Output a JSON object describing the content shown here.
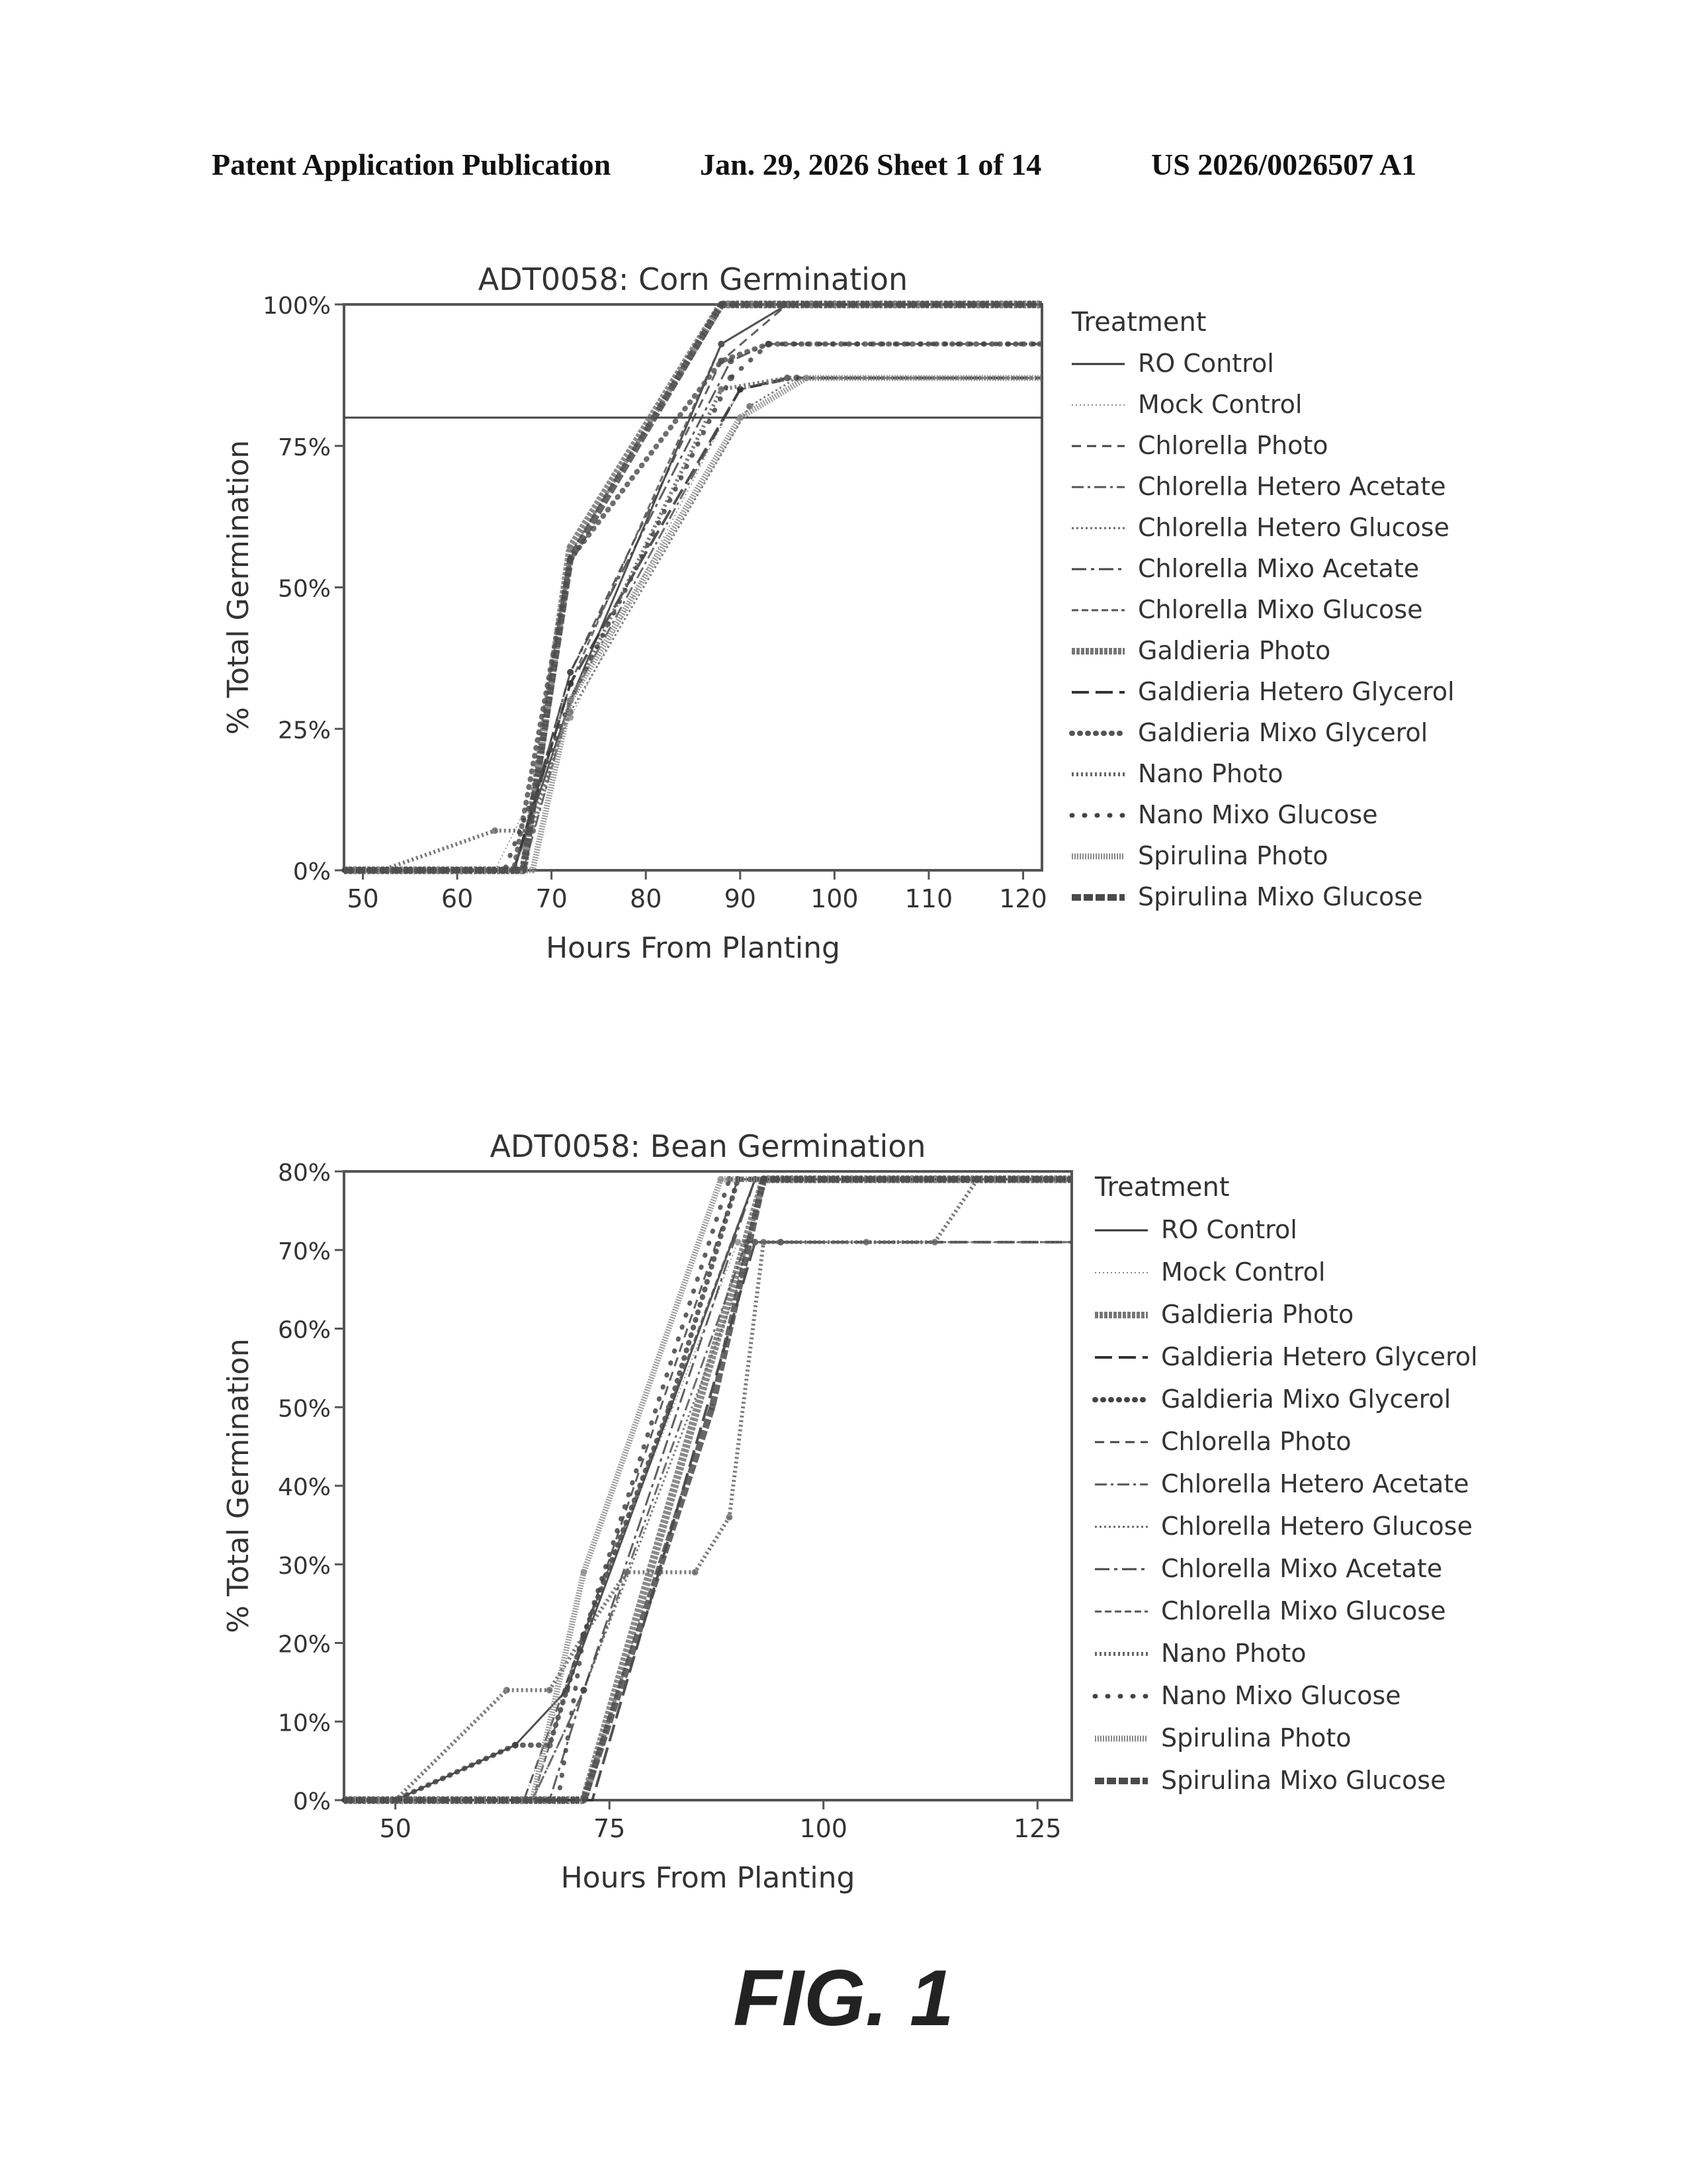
{
  "header": {
    "publication": "Patent Application Publication",
    "date_sheet": "Jan. 29, 2026  Sheet 1 of 14",
    "number": "US 2026/0026507 A1"
  },
  "figure_label": "FIG. 1",
  "chart_data": [
    {
      "type": "line",
      "title": "ADT0058: Corn Germination",
      "xlabel": "Hours From Planting",
      "ylabel": "% Total Germination",
      "xlim": [
        48,
        122
      ],
      "ylim": [
        0,
        1.0
      ],
      "xticks": [
        50,
        60,
        70,
        80,
        90,
        100,
        110,
        120
      ],
      "xtick_labels": [
        "50",
        "60",
        "70",
        "80",
        "90",
        "100",
        "110",
        "120"
      ],
      "yticks": [
        0,
        0.25,
        0.5,
        0.75,
        1.0
      ],
      "ytick_labels": [
        "0%",
        "25%",
        "50%",
        "75%",
        "100%"
      ],
      "reference_line_y": 0.8,
      "legend_title": "Treatment",
      "legend_position": "right",
      "series": [
        {
          "name": "RO Control",
          "style": "solid",
          "color": "#333333",
          "x": [
            48,
            52,
            66,
            72,
            88,
            95,
            122
          ],
          "y": [
            0,
            0,
            0,
            0.3,
            0.93,
            1.0,
            1.0
          ]
        },
        {
          "name": "Mock Control",
          "style": "dotted-thin",
          "color": "#888888",
          "x": [
            48,
            52,
            64,
            72,
            90,
            96,
            122
          ],
          "y": [
            0,
            0,
            0,
            0.27,
            0.85,
            0.87,
            0.87
          ]
        },
        {
          "name": "Chlorella Photo",
          "style": "dashed",
          "color": "#444444",
          "x": [
            48,
            52,
            66,
            72,
            88,
            95,
            122
          ],
          "y": [
            0,
            0,
            0,
            0.35,
            0.9,
            1.0,
            1.0
          ]
        },
        {
          "name": "Chlorella Hetero Acetate",
          "style": "dashdot",
          "color": "#555555",
          "x": [
            48,
            52,
            67,
            72,
            90,
            96,
            122
          ],
          "y": [
            0,
            0,
            0,
            0.3,
            0.85,
            0.87,
            0.87
          ]
        },
        {
          "name": "Chlorella Hetero Glucose",
          "style": "dotted",
          "color": "#666666",
          "x": [
            48,
            52,
            66,
            72,
            91,
            96,
            122
          ],
          "y": [
            0,
            0,
            0,
            0.28,
            0.82,
            0.87,
            0.87
          ]
        },
        {
          "name": "Chlorella Mixo Acetate",
          "style": "longdash-dot",
          "color": "#444444",
          "x": [
            48,
            52,
            66,
            72,
            89,
            93,
            122
          ],
          "y": [
            0,
            0,
            0,
            0.35,
            0.9,
            0.93,
            0.93
          ]
        },
        {
          "name": "Chlorella Mixo Glucose",
          "style": "dashed-fine",
          "color": "#555555",
          "x": [
            48,
            52,
            66,
            72,
            88,
            95,
            122
          ],
          "y": [
            0,
            0,
            0,
            0.33,
            0.93,
            1.0,
            1.0
          ]
        },
        {
          "name": "Galdieria Photo",
          "style": "thick-textured",
          "color": "#777777",
          "x": [
            48,
            52,
            67,
            72,
            88,
            122
          ],
          "y": [
            0,
            0,
            0,
            0.57,
            1.0,
            1.0
          ]
        },
        {
          "name": "Galdieria Hetero Glycerol",
          "style": "longdash",
          "color": "#333333",
          "x": [
            48,
            52,
            66,
            72,
            90,
            95,
            122
          ],
          "y": [
            0,
            0,
            0,
            0.33,
            0.85,
            0.87,
            0.87
          ]
        },
        {
          "name": "Galdieria Mixo Glycerol",
          "style": "dots-heavy",
          "color": "#555555",
          "x": [
            48,
            52,
            66,
            72,
            88,
            93,
            122
          ],
          "y": [
            0,
            0,
            0,
            0.55,
            0.9,
            0.93,
            0.93
          ]
        },
        {
          "name": "Nano Photo",
          "style": "dots-dense",
          "color": "#666666",
          "x": [
            48,
            52,
            64,
            68,
            72,
            88,
            95,
            122
          ],
          "y": [
            0,
            0,
            0.07,
            0.07,
            0.3,
            0.85,
            0.87,
            0.87
          ]
        },
        {
          "name": "Nano Mixo Glucose",
          "style": "dots-sparse",
          "color": "#444444",
          "x": [
            48,
            52,
            65,
            72,
            89,
            93,
            122
          ],
          "y": [
            0,
            0,
            0,
            0.3,
            0.87,
            0.93,
            0.93
          ]
        },
        {
          "name": "Spirulina Photo",
          "style": "hatched",
          "color": "#888888",
          "x": [
            48,
            52,
            68,
            72,
            90,
            97,
            122
          ],
          "y": [
            0,
            0,
            0,
            0.3,
            0.8,
            0.87,
            0.87
          ]
        },
        {
          "name": "Spirulina Mixo Glucose",
          "style": "thick-dark",
          "color": "#4a4a4a",
          "x": [
            48,
            52,
            67,
            72,
            88,
            122
          ],
          "y": [
            0,
            0,
            0,
            0.55,
            1.0,
            1.0
          ]
        }
      ]
    },
    {
      "type": "line",
      "title": "ADT0058: Bean Germination",
      "xlabel": "Hours From Planting",
      "ylabel": "% Total Germination",
      "xlim": [
        44,
        129
      ],
      "ylim": [
        0,
        0.8
      ],
      "xticks": [
        50,
        75,
        100,
        125
      ],
      "xtick_labels": [
        "50",
        "75",
        "100",
        "125"
      ],
      "yticks": [
        0,
        0.1,
        0.2,
        0.3,
        0.4,
        0.5,
        0.6,
        0.7,
        0.8
      ],
      "ytick_labels": [
        "0%",
        "10%",
        "20%",
        "30%",
        "40%",
        "50%",
        "60%",
        "70%",
        "80%"
      ],
      "legend_title": "Treatment",
      "legend_position": "right",
      "series": [
        {
          "name": "RO Control",
          "style": "solid",
          "color": "#333333",
          "x": [
            44,
            50,
            64,
            70,
            92,
            100,
            129
          ],
          "y": [
            0,
            0,
            0.07,
            0.14,
            0.79,
            0.79,
            0.79
          ]
        },
        {
          "name": "Mock Control",
          "style": "dotted-thin",
          "color": "#888888",
          "x": [
            44,
            50,
            65,
            72,
            90,
            95,
            129
          ],
          "y": [
            0,
            0,
            0,
            0.21,
            0.71,
            0.71,
            0.71
          ]
        },
        {
          "name": "Galdieria Photo",
          "style": "thick-textured",
          "color": "#777777",
          "x": [
            44,
            50,
            70,
            72,
            93,
            129
          ],
          "y": [
            0,
            0,
            0,
            0,
            0.79,
            0.79
          ]
        },
        {
          "name": "Galdieria Hetero Glycerol",
          "style": "longdash",
          "color": "#333333",
          "x": [
            44,
            50,
            70,
            73,
            92,
            129
          ],
          "y": [
            0,
            0,
            0,
            0,
            0.71,
            0.71
          ]
        },
        {
          "name": "Galdieria Mixo Glycerol",
          "style": "dots-heavy",
          "color": "#444444",
          "x": [
            44,
            50,
            64,
            68,
            72,
            82,
            90,
            129
          ],
          "y": [
            0,
            0,
            0.07,
            0.07,
            0.21,
            0.5,
            0.79,
            0.79
          ]
        },
        {
          "name": "Chlorella Photo",
          "style": "dashed",
          "color": "#444444",
          "x": [
            44,
            50,
            65,
            72,
            90,
            129
          ],
          "y": [
            0,
            0,
            0,
            0.21,
            0.79,
            0.79
          ]
        },
        {
          "name": "Chlorella Hetero Acetate",
          "style": "dashdot",
          "color": "#555555",
          "x": [
            44,
            50,
            66,
            72,
            91,
            95,
            129
          ],
          "y": [
            0,
            0,
            0,
            0.14,
            0.71,
            0.71,
            0.71
          ]
        },
        {
          "name": "Chlorella Hetero Glucose",
          "style": "dotted",
          "color": "#666666",
          "x": [
            44,
            50,
            66,
            72,
            92,
            129
          ],
          "y": [
            0,
            0,
            0,
            0.14,
            0.71,
            0.71
          ]
        },
        {
          "name": "Chlorella Mixo Acetate",
          "style": "longdash-dot",
          "color": "#444444",
          "x": [
            44,
            50,
            68,
            72,
            92,
            129
          ],
          "y": [
            0,
            0,
            0,
            0.14,
            0.79,
            0.79
          ]
        },
        {
          "name": "Chlorella Mixo Glucose",
          "style": "dashed-fine",
          "color": "#555555",
          "x": [
            44,
            50,
            66,
            72,
            92,
            129
          ],
          "y": [
            0,
            0,
            0,
            0.21,
            0.79,
            0.79
          ]
        },
        {
          "name": "Nano Photo",
          "style": "dots-dense",
          "color": "#666666",
          "x": [
            44,
            50,
            63,
            68,
            72,
            77,
            85,
            89,
            93,
            105,
            113,
            118,
            129
          ],
          "y": [
            0,
            0,
            0.14,
            0.14,
            0.21,
            0.29,
            0.29,
            0.36,
            0.71,
            0.71,
            0.71,
            0.79,
            0.79
          ]
        },
        {
          "name": "Nano Mixo Glucose",
          "style": "dots-sparse",
          "color": "#444444",
          "x": [
            44,
            50,
            69,
            72,
            89,
            129
          ],
          "y": [
            0,
            0,
            0,
            0.21,
            0.79,
            0.79
          ]
        },
        {
          "name": "Spirulina Photo",
          "style": "hatched",
          "color": "#888888",
          "x": [
            44,
            50,
            66,
            72,
            88,
            93,
            129
          ],
          "y": [
            0,
            0,
            0,
            0.29,
            0.79,
            0.79,
            0.79
          ]
        },
        {
          "name": "Spirulina Mixo Glucose",
          "style": "thick-dark",
          "color": "#4a4a4a",
          "x": [
            44,
            50,
            70,
            72,
            87,
            93,
            129
          ],
          "y": [
            0,
            0,
            0,
            0,
            0.5,
            0.79,
            0.79
          ]
        }
      ]
    }
  ]
}
